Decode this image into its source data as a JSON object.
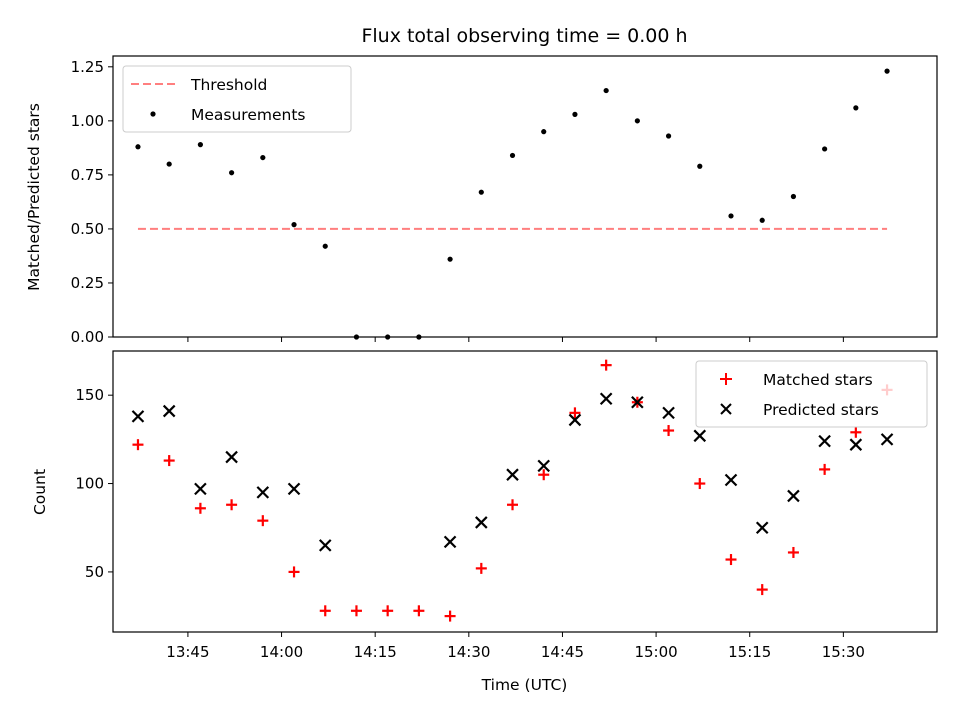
{
  "chart_data": [
    {
      "type": "scatter",
      "title": "Flux total observing time = 0.00 h",
      "xlabel": "",
      "ylabel": "Matched/Predicted stars",
      "ylim": [
        0,
        1.3
      ],
      "yticks": [
        "0.00",
        "0.25",
        "0.50",
        "0.75",
        "1.00",
        "1.25"
      ],
      "ytick_values": [
        0,
        0.25,
        0.5,
        0.75,
        1.0,
        1.25
      ],
      "grid": false,
      "legend_position": "top-left",
      "threshold": {
        "name": "Threshold",
        "value": 0.5,
        "x_start": "13:37",
        "x_end": "15:37",
        "color": "#ff7f7f"
      },
      "series": [
        {
          "name": "Measurements",
          "color": "#000000",
          "marker": "dot",
          "x": [
            "13:37",
            "13:42",
            "13:47",
            "13:52",
            "13:57",
            "14:02",
            "14:07",
            "14:12",
            "14:17",
            "14:22",
            "14:27",
            "14:32",
            "14:37",
            "14:42",
            "14:47",
            "14:52",
            "14:57",
            "15:02",
            "15:07",
            "15:12",
            "15:17",
            "15:22",
            "15:27",
            "15:32",
            "15:37"
          ],
          "values": [
            0.88,
            0.8,
            0.89,
            0.76,
            0.83,
            0.52,
            0.42,
            0.0,
            0.0,
            0.0,
            0.36,
            0.67,
            0.84,
            0.95,
            1.03,
            1.14,
            1.0,
            0.93,
            0.79,
            0.56,
            0.54,
            0.65,
            0.87,
            1.06,
            1.23
          ]
        }
      ]
    },
    {
      "type": "scatter",
      "title": "",
      "xlabel": "Time (UTC)",
      "ylabel": "Count",
      "ylim": [
        16,
        175
      ],
      "yticks": [
        "50",
        "100",
        "150"
      ],
      "ytick_values": [
        50,
        100,
        150
      ],
      "xticks": [
        "13:45",
        "14:00",
        "14:15",
        "14:30",
        "14:45",
        "15:00",
        "15:15",
        "15:30"
      ],
      "xlim": [
        "13:33",
        "15:45"
      ],
      "grid": false,
      "legend_position": "top-right",
      "series": [
        {
          "name": "Matched stars",
          "color": "#ff0000",
          "marker": "plus",
          "x": [
            "13:37",
            "13:42",
            "13:47",
            "13:52",
            "13:57",
            "14:02",
            "14:07",
            "14:12",
            "14:17",
            "14:22",
            "14:27",
            "14:32",
            "14:37",
            "14:42",
            "14:47",
            "14:52",
            "14:57",
            "15:02",
            "15:07",
            "15:12",
            "15:17",
            "15:22",
            "15:27",
            "15:32",
            "15:37"
          ],
          "values": [
            122,
            113,
            86,
            88,
            79,
            50,
            28,
            28,
            28,
            28,
            25,
            52,
            88,
            105,
            140,
            167,
            146,
            130,
            100,
            57,
            40,
            61,
            108,
            129,
            153
          ]
        },
        {
          "name": "Predicted stars",
          "color": "#000000",
          "marker": "x",
          "x": [
            "13:37",
            "13:42",
            "13:47",
            "13:52",
            "13:57",
            "14:02",
            "14:07",
            "14:27",
            "14:32",
            "14:37",
            "14:42",
            "14:47",
            "14:52",
            "14:57",
            "15:02",
            "15:07",
            "15:12",
            "15:17",
            "15:22",
            "15:27",
            "15:32",
            "15:37"
          ],
          "values": [
            138,
            141,
            97,
            115,
            95,
            97,
            65,
            67,
            78,
            105,
            110,
            136,
            148,
            146,
            140,
            127,
            102,
            75,
            93,
            124,
            122,
            125
          ]
        }
      ]
    }
  ]
}
